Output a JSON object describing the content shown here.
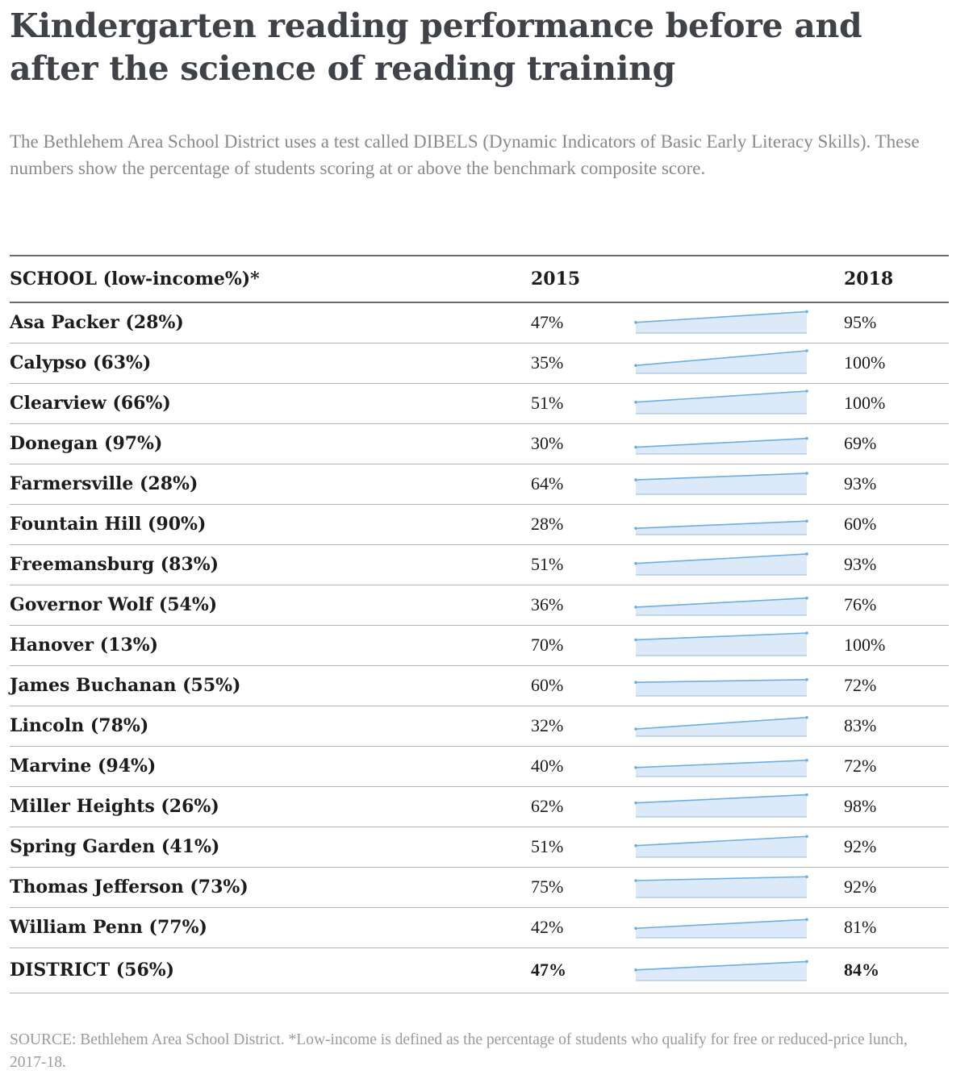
{
  "title": "Kindergarten reading performance before and after the science of reading training",
  "subtitle": "The Bethlehem Area School District uses a test called DIBELS (Dynamic Indicators of Basic Early Literacy Skills). These numbers show the percentage of students scoring at or above the benchmark composite score.",
  "source": "SOURCE: Bethlehem Area School District. *Low-income is defined as the percentage of students who qualify for free or reduced-price lunch, 2017-18.",
  "colors": {
    "line": "#6aaee6",
    "fill": "#dce9f8",
    "base": "#a9c6e4"
  },
  "chart_data": {
    "type": "table",
    "columns": [
      "SCHOOL (low-income%)*",
      "2015",
      "",
      "2018"
    ],
    "rows": [
      {
        "school": "Asa Packer (28%)",
        "y2015": 47,
        "y2018": 95,
        "v2015": "47%",
        "v2018": "95%"
      },
      {
        "school": "Calypso (63%)",
        "y2015": 35,
        "y2018": 100,
        "v2015": "35%",
        "v2018": "100%"
      },
      {
        "school": "Clearview (66%)",
        "y2015": 51,
        "y2018": 100,
        "v2015": "51%",
        "v2018": "100%"
      },
      {
        "school": "Donegan (97%)",
        "y2015": 30,
        "y2018": 69,
        "v2015": "30%",
        "v2018": "69%"
      },
      {
        "school": "Farmersville (28%)",
        "y2015": 64,
        "y2018": 93,
        "v2015": "64%",
        "v2018": "93%"
      },
      {
        "school": "Fountain Hill (90%)",
        "y2015": 28,
        "y2018": 60,
        "v2015": "28%",
        "v2018": "60%"
      },
      {
        "school": "Freemansburg (83%)",
        "y2015": 51,
        "y2018": 93,
        "v2015": "51%",
        "v2018": "93%"
      },
      {
        "school": "Governor Wolf (54%)",
        "y2015": 36,
        "y2018": 76,
        "v2015": "36%",
        "v2018": "76%"
      },
      {
        "school": "Hanover (13%)",
        "y2015": 70,
        "y2018": 100,
        "v2015": "70%",
        "v2018": "100%"
      },
      {
        "school": "James Buchanan (55%)",
        "y2015": 60,
        "y2018": 72,
        "v2015": "60%",
        "v2018": "72%"
      },
      {
        "school": "Lincoln (78%)",
        "y2015": 32,
        "y2018": 83,
        "v2015": "32%",
        "v2018": "83%"
      },
      {
        "school": "Marvine (94%)",
        "y2015": 40,
        "y2018": 72,
        "v2015": "40%",
        "v2018": "72%"
      },
      {
        "school": "Miller Heights (26%)",
        "y2015": 62,
        "y2018": 98,
        "v2015": "62%",
        "v2018": "98%"
      },
      {
        "school": "Spring Garden (41%)",
        "y2015": 51,
        "y2018": 92,
        "v2015": "51%",
        "v2018": "92%"
      },
      {
        "school": "Thomas Jefferson (73%)",
        "y2015": 75,
        "y2018": 92,
        "v2015": "75%",
        "v2018": "92%"
      },
      {
        "school": "William Penn (77%)",
        "y2015": 42,
        "y2018": 81,
        "v2015": "42%",
        "v2018": "81%"
      },
      {
        "school": "DISTRICT (56%)",
        "y2015": 47,
        "y2018": 84,
        "v2015": "47%",
        "v2018": "84%"
      }
    ]
  }
}
